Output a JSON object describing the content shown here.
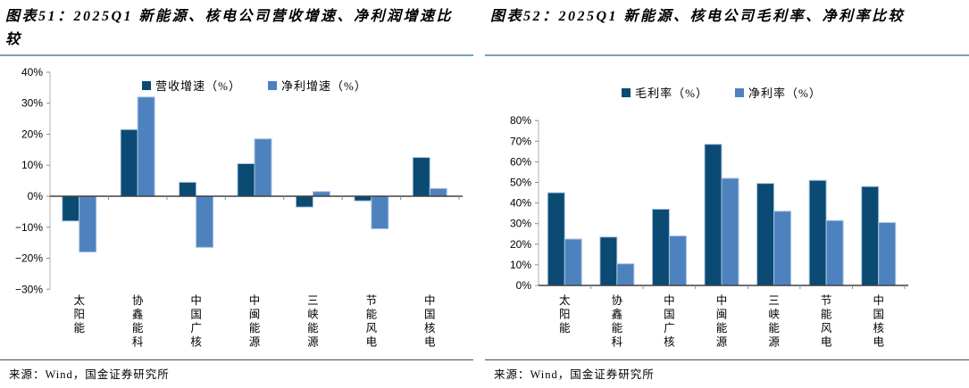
{
  "colors": {
    "series_dark_blue": "#0B4A72",
    "series_light_blue": "#4E82BE",
    "bar_outline": "#A9C6E2",
    "title_underline": "#7A9EB5",
    "source_divider": "#4D4D4D",
    "zero_axis": "#404040",
    "axis_line": "#BFBFBF",
    "tick_mark": "#8C8C8C"
  },
  "figures": [
    {
      "title": "图表51：2025Q1 新能源、核电公司营收增速、净利润增速比较",
      "source": "来源：Wind，国金证券研究所"
    },
    {
      "title": "图表52：2025Q1 新能源、核电公司毛利率、净利率比较",
      "source": "来源：Wind，国金证券研究所"
    }
  ],
  "chart_data": [
    {
      "type": "bar",
      "title": "2025Q1 新能源、核电公司营收增速、净利润增速比较",
      "categories": [
        "太阳能",
        "协鑫能科",
        "中国广核",
        "中闽能源",
        "三峡能源",
        "节能风电",
        "中国核电"
      ],
      "series": [
        {
          "name": "营收增速（%）",
          "color": "#0B4A72",
          "values": [
            -8,
            21.5,
            4.5,
            10.5,
            -3.5,
            -1.5,
            12.5
          ]
        },
        {
          "name": "净利增速（%）",
          "color": "#4E82BE",
          "values": [
            -18,
            32,
            -16.5,
            18.5,
            1.5,
            -10.5,
            2.5
          ]
        }
      ],
      "ylim": [
        -30,
        40
      ],
      "ytick_step": 10,
      "ytick_suffix": "%",
      "grid": false,
      "legend_position": "top-center"
    },
    {
      "type": "bar",
      "title": "2025Q1 新能源、核电公司毛利率、净利率比较",
      "categories": [
        "太阳能",
        "协鑫能科",
        "中国广核",
        "中闽能源",
        "三峡能源",
        "节能风电",
        "中国核电"
      ],
      "series": [
        {
          "name": "毛利率（%）",
          "color": "#0B4A72",
          "values": [
            45,
            23.5,
            37,
            68.5,
            49.5,
            51,
            48
          ]
        },
        {
          "name": "净利率（%）",
          "color": "#4E82BE",
          "values": [
            22.5,
            10.5,
            24,
            52,
            36,
            31.5,
            30.5
          ]
        }
      ],
      "ylim": [
        0,
        80
      ],
      "ytick_step": 10,
      "ytick_suffix": "%",
      "grid": false,
      "legend_position": "top-center"
    }
  ]
}
